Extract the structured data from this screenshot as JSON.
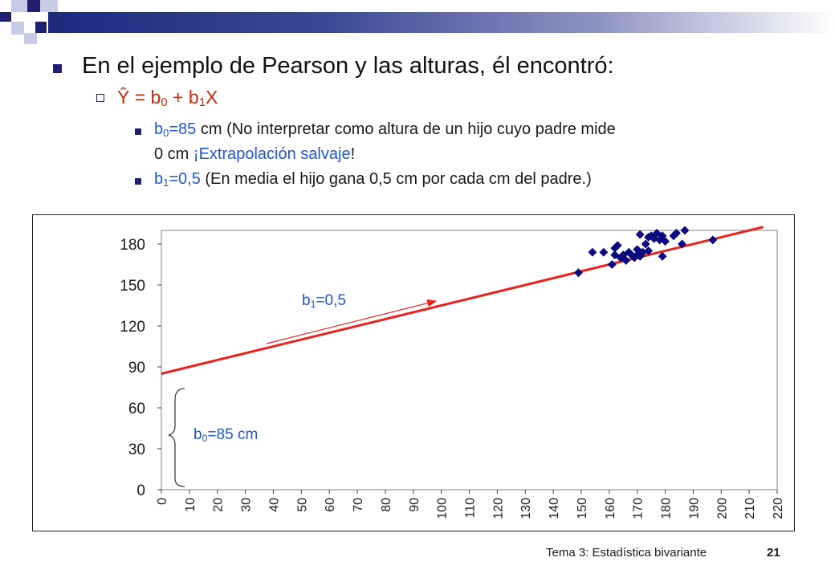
{
  "slide": {
    "heading": "En el ejemplo de Pearson y las alturas, él encontró:",
    "equation": {
      "yhat": "Ŷ = b",
      "sub0": "0",
      "plus": " + b",
      "sub1": "1",
      "x": "X"
    },
    "bullet_b0": {
      "var": "b",
      "sub": "0",
      "value": "=85",
      "text": " cm (No interpretar como altura de un hijo cuyo padre mide",
      "line2_a": "0 cm ",
      "line2_b": "¡Extrapolación salvaje",
      "line2_c": "!"
    },
    "bullet_b1": {
      "var": "b",
      "sub": "1",
      "value": "=0,5",
      "text": " (En media el hijo gana 0,5 cm por cada cm del padre.)"
    }
  },
  "colors": {
    "blue_text": "#1f55d6",
    "red_text": "#cc2a0e",
    "regression_line": "#e8231e",
    "points": "#0a0a8a",
    "bullet": "#1f2070"
  },
  "chart_data": {
    "type": "scatter",
    "title": "",
    "xlabel": "",
    "ylabel": "",
    "xlim": [
      0,
      220
    ],
    "ylim": [
      0,
      190
    ],
    "xticks": [
      "0",
      "10",
      "20",
      "30",
      "40",
      "50",
      "60",
      "70",
      "80",
      "90",
      "100",
      "110",
      "120",
      "130",
      "140",
      "150",
      "160",
      "170",
      "180",
      "190",
      "200",
      "210",
      "220"
    ],
    "yticks": [
      "0",
      "30",
      "60",
      "90",
      "120",
      "150",
      "180"
    ],
    "points": [
      [
        149,
        159
      ],
      [
        154,
        174
      ],
      [
        158,
        174
      ],
      [
        161,
        165
      ],
      [
        162,
        172
      ],
      [
        162,
        177
      ],
      [
        163,
        179
      ],
      [
        164,
        170
      ],
      [
        165,
        172
      ],
      [
        166,
        168
      ],
      [
        167,
        174
      ],
      [
        168,
        172
      ],
      [
        169,
        170
      ],
      [
        170,
        176
      ],
      [
        170,
        172
      ],
      [
        171,
        187
      ],
      [
        171,
        171
      ],
      [
        172,
        174
      ],
      [
        173,
        180
      ],
      [
        174,
        185
      ],
      [
        174,
        175
      ],
      [
        175,
        186
      ],
      [
        176,
        184
      ],
      [
        177,
        188
      ],
      [
        178,
        183
      ],
      [
        179,
        186
      ],
      [
        179,
        171
      ],
      [
        180,
        182
      ],
      [
        183,
        186
      ],
      [
        184,
        188
      ],
      [
        186,
        180
      ],
      [
        187,
        190
      ],
      [
        197,
        183
      ]
    ],
    "regression": {
      "intercept": 85,
      "slope": 0.5,
      "x_range": [
        0,
        215
      ]
    },
    "labels": {
      "slope": {
        "var": "b",
        "sub": "1",
        "value": "=0,5"
      },
      "intercept": {
        "var": "b",
        "sub": "0",
        "value": "=85 cm"
      }
    }
  },
  "footer": {
    "title": "Tema 3: Estadística bivariante",
    "page": "21"
  }
}
